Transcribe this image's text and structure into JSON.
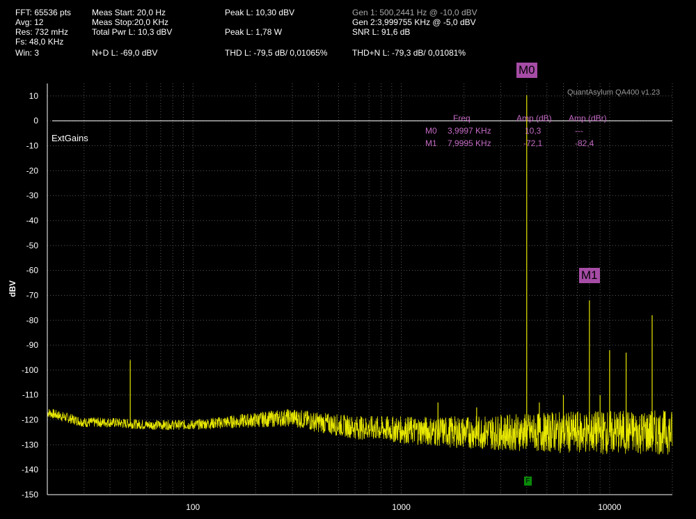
{
  "header": {
    "col1": [
      "FFT: 65536 pts",
      "Avg: 12",
      "Res: 732 mHz",
      "Fs: 48,0 KHz",
      "Win: 3"
    ],
    "meas_start": "Meas Start: 20,0 Hz",
    "meas_stop": "Meas Stop:20,0 KHz",
    "total_pwr": "Total Pwr L: 10,3 dBV",
    "nd": "N+D L: -69,0 dBV",
    "peak_dbv": "Peak L: 10,30 dBV",
    "peak_w": "Peak L: 1,78 W",
    "thd": "THD L: -79,5 dB/ 0,01065%",
    "gen1": "Gen 1: 500,2441 Hz @ -10,0  dBV",
    "gen2": "Gen 2:3,999755 KHz @ -5,0  dBV",
    "snr": "SNR L: 91,6 dB",
    "thdn": "THD+N L: -79,3 dB/ 0,01081%"
  },
  "version": "QuantAsylum QA400 v1.23",
  "ext_gains": "ExtGains",
  "flag_label": "F",
  "marker_table": {
    "headers": [
      "Freq",
      "Amp (dB)",
      "Amp (dBr)"
    ],
    "rows": [
      {
        "name": "M0",
        "freq": "3,9997 KHz",
        "amp": "10,3",
        "ampr": "---"
      },
      {
        "name": "M1",
        "freq": "7,9995 KHz",
        "amp": "-72,1",
        "ampr": "-82,4"
      }
    ]
  },
  "colors": {
    "trace": "#e8e800",
    "grid": "#5a5a5a",
    "marker": "#a64ca6",
    "marker_text": "#c46bc4",
    "flag": "#0a8a0a"
  },
  "chart_data": {
    "type": "line",
    "xscale": "log",
    "xlim": [
      20,
      20000
    ],
    "ylim": [
      -150,
      15
    ],
    "ylabel": "dBV",
    "xlabel": "",
    "x_ticks": [
      100,
      1000,
      10000
    ],
    "x_tick_labels": [
      "100",
      "1000",
      "10000"
    ],
    "y_ticks": [
      10,
      0,
      -10,
      -20,
      -30,
      -40,
      -50,
      -60,
      -70,
      -80,
      -90,
      -100,
      -110,
      -120,
      -130,
      -140,
      -150
    ],
    "y_tick_labels": [
      "10",
      "0",
      "-10",
      "-20",
      "-30",
      "-40",
      "-50",
      "-60",
      "-70",
      "-80",
      "-90",
      "-100",
      "-110",
      "-120",
      "-130",
      "-140",
      "-150"
    ],
    "reference_line_y": 0,
    "noise_floor": [
      {
        "x": 20,
        "y": -117
      },
      {
        "x": 30,
        "y": -121
      },
      {
        "x": 40,
        "y": -121
      },
      {
        "x": 60,
        "y": -122
      },
      {
        "x": 100,
        "y": -122
      },
      {
        "x": 200,
        "y": -120
      },
      {
        "x": 300,
        "y": -119
      },
      {
        "x": 400,
        "y": -121
      },
      {
        "x": 600,
        "y": -123
      },
      {
        "x": 1000,
        "y": -124
      },
      {
        "x": 2000,
        "y": -125
      },
      {
        "x": 4000,
        "y": -125
      },
      {
        "x": 8000,
        "y": -125
      },
      {
        "x": 20000,
        "y": -125
      }
    ],
    "peaks": [
      {
        "x": 50,
        "y": -96
      },
      {
        "x": 1500,
        "y": -113
      },
      {
        "x": 2300,
        "y": -115
      },
      {
        "x": 2700,
        "y": -120
      },
      {
        "x": 4000,
        "y": 10.3
      },
      {
        "x": 4600,
        "y": -113
      },
      {
        "x": 5300,
        "y": -117
      },
      {
        "x": 6000,
        "y": -110
      },
      {
        "x": 7000,
        "y": -117
      },
      {
        "x": 8000,
        "y": -72
      },
      {
        "x": 9000,
        "y": -110
      },
      {
        "x": 10000,
        "y": -92
      },
      {
        "x": 12000,
        "y": -93
      },
      {
        "x": 16000,
        "y": -78
      }
    ],
    "markers": [
      {
        "name": "M0",
        "x": 4000,
        "y": 10.3
      },
      {
        "name": "M1",
        "x": 8000,
        "y": -72.1
      }
    ],
    "flag_x": 4000
  }
}
